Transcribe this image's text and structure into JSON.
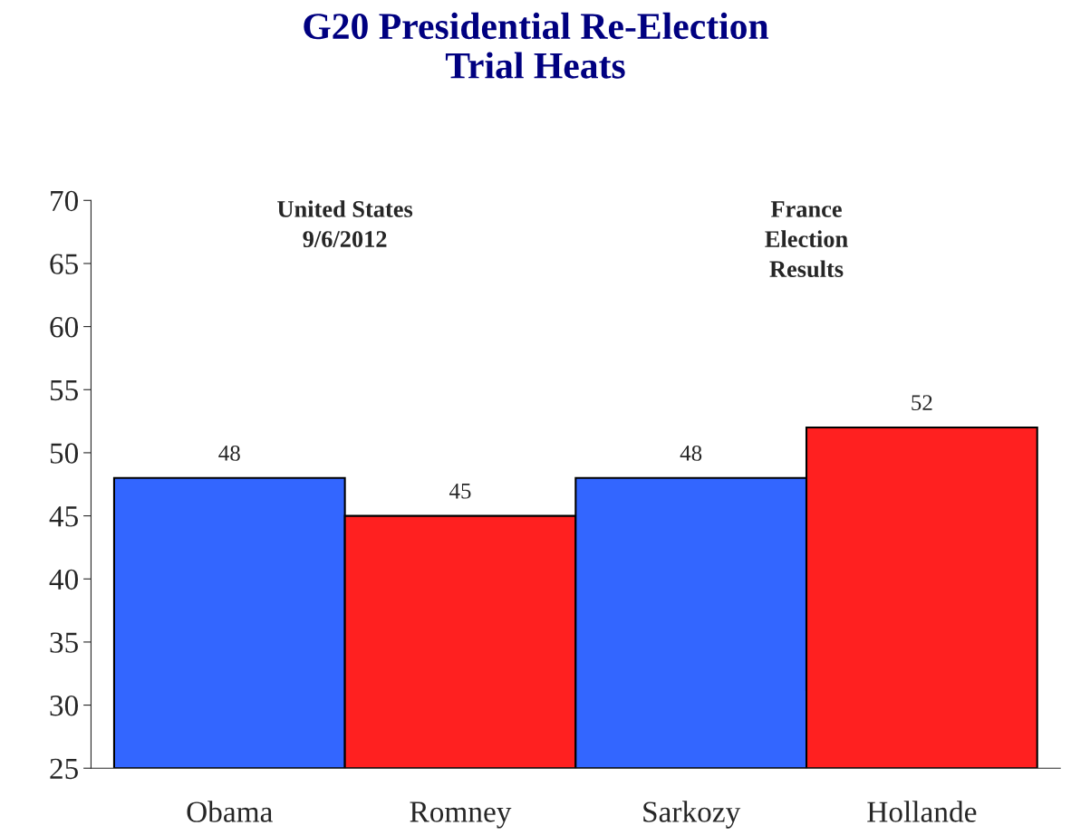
{
  "chart_data": {
    "type": "bar",
    "title": "G20 Presidential Re-Election\nTrial Heats",
    "categories": [
      "Obama",
      "Romney",
      "Sarkozy",
      "Hollande"
    ],
    "values": [
      48,
      45,
      48,
      52
    ],
    "colors": [
      "#3366ff",
      "#ff2020",
      "#3366ff",
      "#ff2020"
    ],
    "ylim": [
      25,
      70
    ],
    "yticks": [
      25,
      30,
      35,
      40,
      45,
      50,
      55,
      60,
      65,
      70
    ],
    "data_labels": true,
    "grid": false,
    "legend": false,
    "annotations": [
      "United States\n9/6/2012",
      "France\nElection\nResults"
    ]
  }
}
